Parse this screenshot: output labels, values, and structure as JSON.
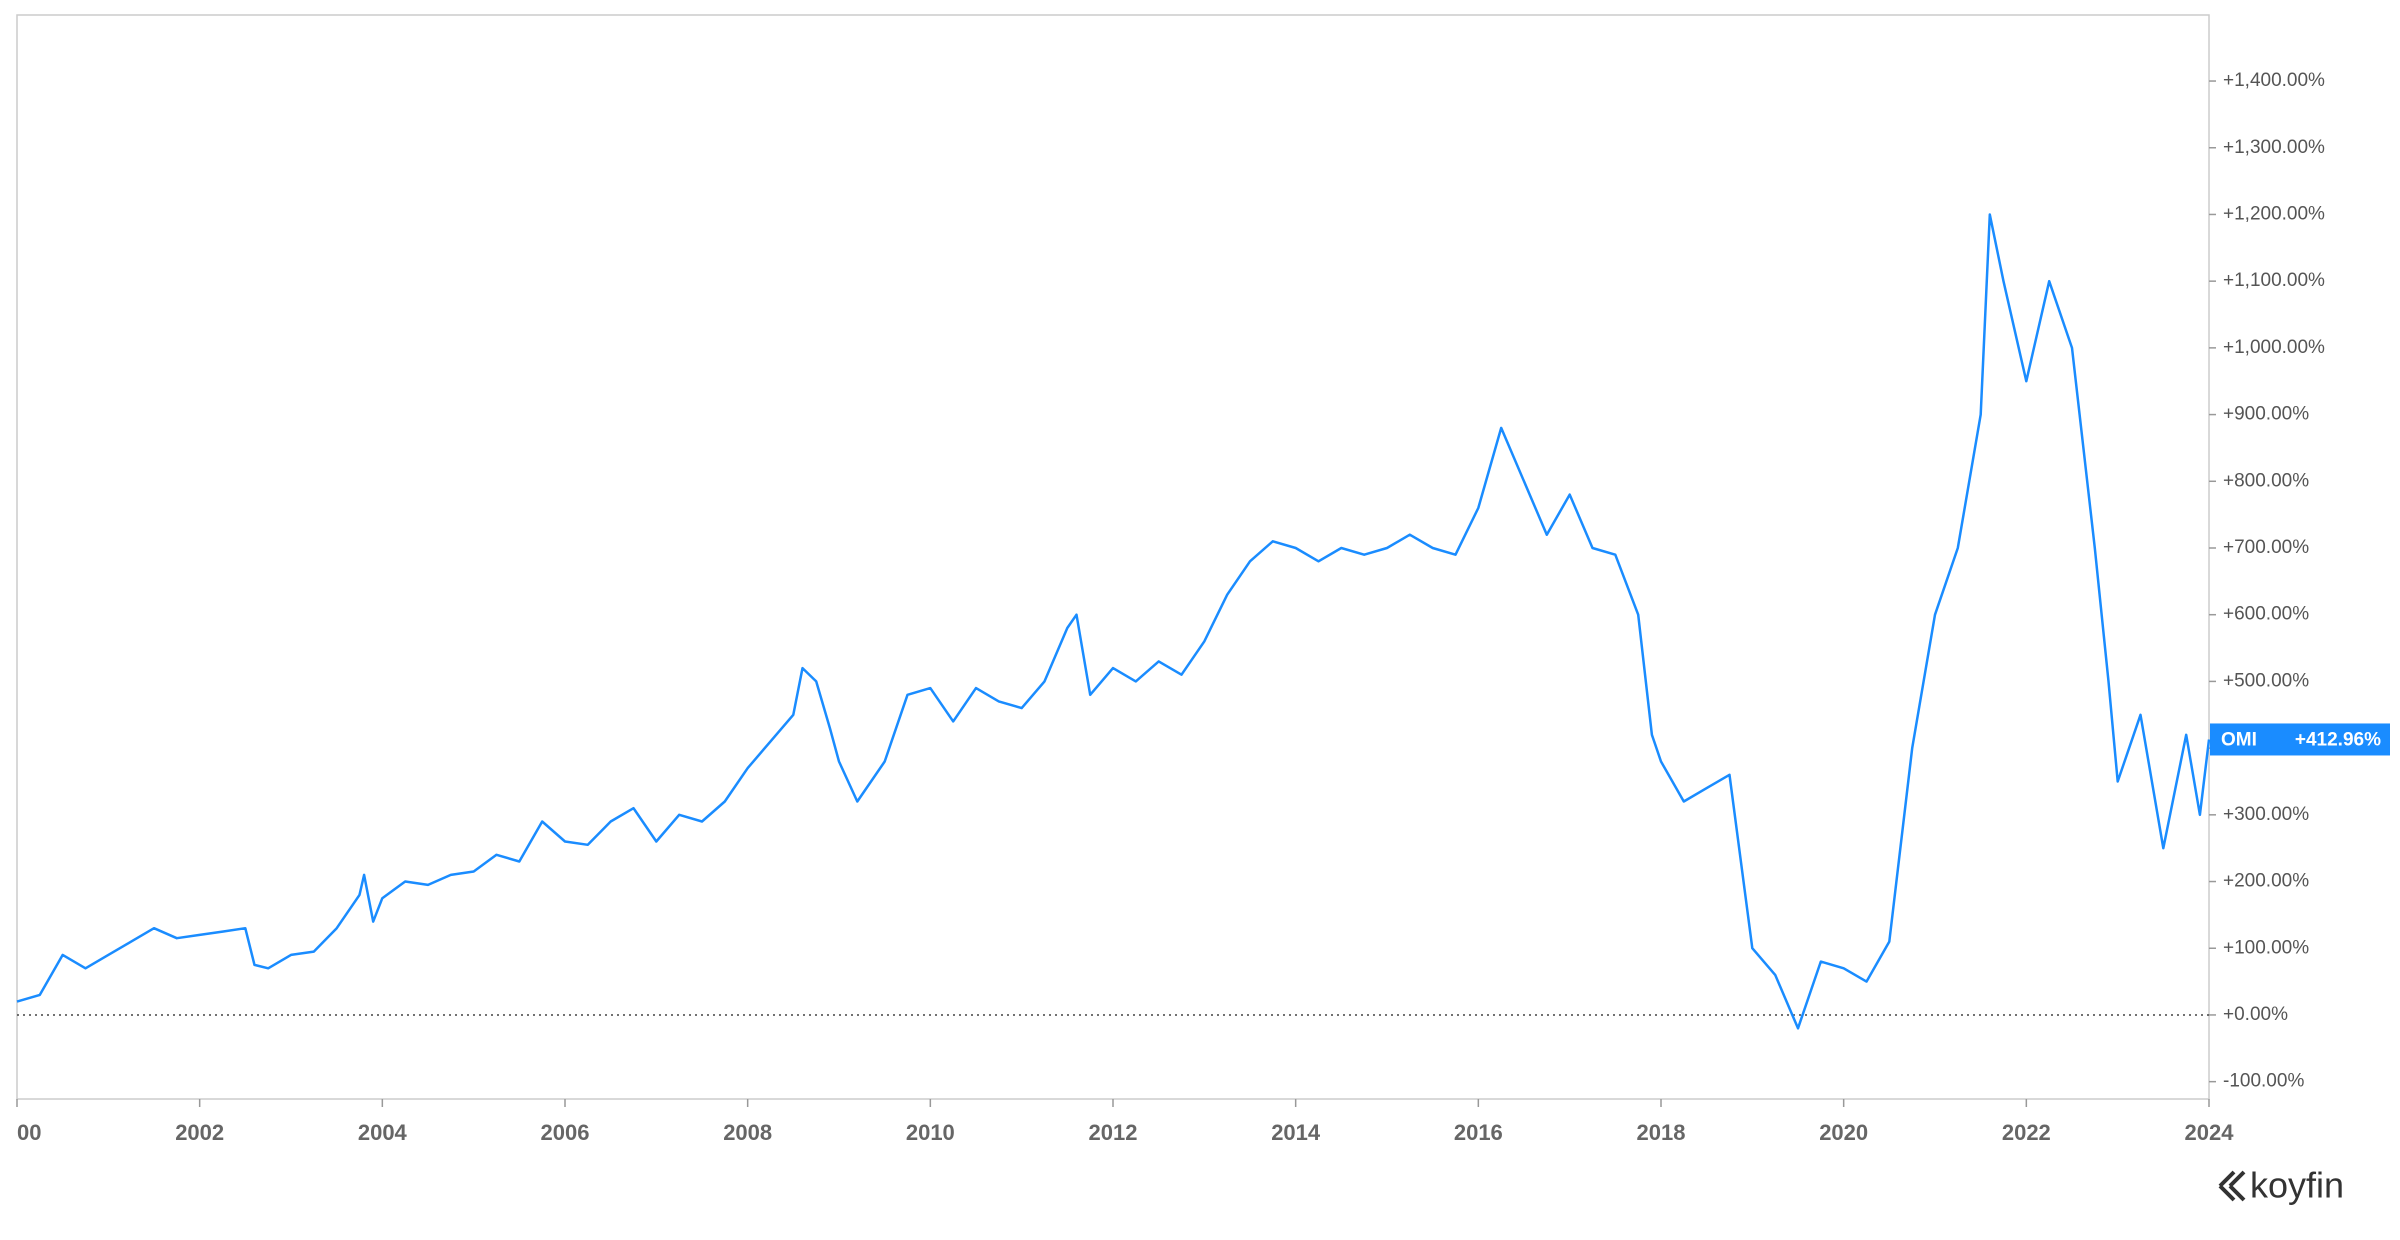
{
  "chart_data": {
    "type": "line",
    "xlim": [
      2000,
      2024
    ],
    "xticks": [
      {
        "value": 2000,
        "label": "00"
      },
      2002,
      2004,
      2006,
      2008,
      2010,
      2012,
      2014,
      2016,
      2018,
      2020,
      2022,
      2024
    ],
    "ylim": [
      -126,
      1499
    ],
    "yticks": [
      {
        "value": -100,
        "label": "-100.00%"
      },
      {
        "value": 0,
        "label": "+0.00%"
      },
      {
        "value": 100,
        "label": "+100.00%"
      },
      {
        "value": 200,
        "label": "+200.00%"
      },
      {
        "value": 300,
        "label": "+300.00%"
      },
      {
        "value": 400,
        "label": "+400.00%"
      },
      {
        "value": 500,
        "label": "+500.00%"
      },
      {
        "value": 600,
        "label": "+600.00%"
      },
      {
        "value": 700,
        "label": "+700.00%"
      },
      {
        "value": 800,
        "label": "+800.00%"
      },
      {
        "value": 900,
        "label": "+900.00%"
      },
      {
        "value": 1000,
        "label": "+1,000.00%"
      },
      {
        "value": 1100,
        "label": "+1,100.00%"
      },
      {
        "value": 1200,
        "label": "+1,200.00%"
      },
      {
        "value": 1300,
        "label": "+1,300.00%"
      },
      {
        "value": 1400,
        "label": "+1,400.00%"
      }
    ],
    "baseline": 0,
    "x": [
      2000.0,
      2000.25,
      2000.5,
      2000.75,
      2001.0,
      2001.25,
      2001.5,
      2001.75,
      2002.0,
      2002.25,
      2002.5,
      2002.6,
      2002.75,
      2003.0,
      2003.25,
      2003.5,
      2003.75,
      2003.8,
      2003.9,
      2004.0,
      2004.25,
      2004.5,
      2004.75,
      2005.0,
      2005.25,
      2005.5,
      2005.75,
      2006.0,
      2006.25,
      2006.5,
      2006.75,
      2007.0,
      2007.25,
      2007.5,
      2007.75,
      2008.0,
      2008.25,
      2008.5,
      2008.6,
      2008.75,
      2008.9,
      2009.0,
      2009.2,
      2009.5,
      2009.75,
      2010.0,
      2010.25,
      2010.5,
      2010.75,
      2011.0,
      2011.25,
      2011.5,
      2011.6,
      2011.75,
      2012.0,
      2012.25,
      2012.5,
      2012.75,
      2013.0,
      2013.25,
      2013.5,
      2013.75,
      2014.0,
      2014.25,
      2014.5,
      2014.75,
      2015.0,
      2015.25,
      2015.5,
      2015.75,
      2016.0,
      2016.25,
      2016.5,
      2016.75,
      2017.0,
      2017.25,
      2017.5,
      2017.75,
      2017.9,
      2018.0,
      2018.25,
      2018.5,
      2018.75,
      2019.0,
      2019.25,
      2019.5,
      2019.75,
      2020.0,
      2020.25,
      2020.5,
      2020.75,
      2021.0,
      2021.25,
      2021.5,
      2021.6,
      2021.75,
      2022.0,
      2022.25,
      2022.5,
      2022.75,
      2022.9,
      2023.0,
      2023.25,
      2023.5,
      2023.75,
      2023.9,
      2024.0
    ],
    "series": [
      {
        "name": "OMI",
        "color": "#1a8cff",
        "values": [
          20,
          30,
          90,
          70,
          90,
          110,
          130,
          115,
          120,
          125,
          130,
          75,
          70,
          90,
          95,
          130,
          180,
          210,
          140,
          175,
          200,
          195,
          210,
          215,
          240,
          230,
          290,
          260,
          255,
          290,
          310,
          260,
          300,
          290,
          320,
          370,
          410,
          450,
          520,
          500,
          430,
          380,
          320,
          380,
          480,
          490,
          440,
          490,
          470,
          460,
          500,
          580,
          600,
          480,
          520,
          500,
          530,
          510,
          560,
          630,
          680,
          710,
          700,
          680,
          700,
          690,
          700,
          720,
          700,
          690,
          760,
          880,
          800,
          720,
          780,
          700,
          690,
          600,
          420,
          380,
          320,
          340,
          360,
          100,
          60,
          -20,
          80,
          70,
          50,
          110,
          400,
          600,
          700,
          900,
          1200,
          1100,
          950,
          1100,
          1000,
          700,
          500,
          350,
          450,
          250,
          420,
          300,
          412.96
        ],
        "end_label": {
          "value": 412.96,
          "label": "+412.96%"
        }
      }
    ],
    "logo": "koyfin"
  }
}
